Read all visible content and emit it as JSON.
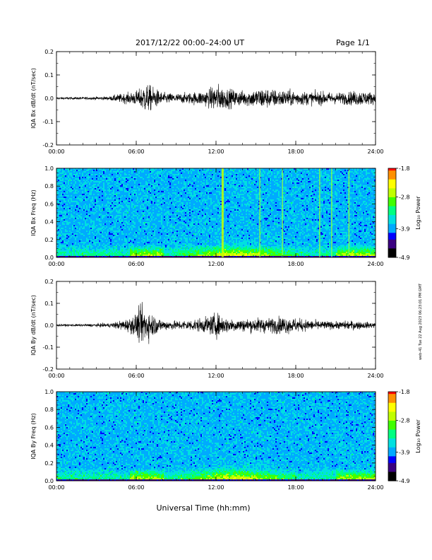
{
  "header": {
    "date_range": "2017/12/22  00:00–24:00 UT",
    "page": "Page 1/1"
  },
  "x_axis_title": "Universal Time (hh:mm)",
  "side_note": "web-41 Tue 22 Aug 2023 06:23:01 PM GMT",
  "colors": {
    "colormap": [
      "#000000",
      "#3a0080",
      "#0000ff",
      "#00aaff",
      "#00e0e0",
      "#00ff80",
      "#40ff00",
      "#c0ff00",
      "#ffff00",
      "#ff9000",
      "#ff0000"
    ],
    "trace": "#000000"
  },
  "chart_data": [
    {
      "type": "line",
      "panel": "bx-dbdt",
      "ylabel": "IQA Bx dB/dt (nT/sec)",
      "x_ticks": [
        "00:00",
        "06:00",
        "12:00",
        "18:00",
        "24:00"
      ],
      "y_ticks": [
        "0.2",
        "0.1",
        "0.0",
        "-0.1",
        "-0.2"
      ],
      "ylim": [
        -0.2,
        0.2
      ],
      "xlim_hours": [
        0,
        24
      ],
      "series": [
        {
          "x_hours": [
            0,
            2,
            4,
            4.5,
            5,
            5.5,
            6,
            6.3,
            6.6,
            7,
            7.5,
            8,
            9,
            10,
            11,
            11.5,
            12,
            12.5,
            13,
            14,
            15,
            15.5,
            16,
            17,
            18,
            19,
            20,
            21,
            22,
            22.5,
            23,
            24
          ],
          "amplitude": [
            0.006,
            0.007,
            0.01,
            0.02,
            0.025,
            0.03,
            0.04,
            0.05,
            0.08,
            0.07,
            0.05,
            0.03,
            0.025,
            0.03,
            0.04,
            0.05,
            0.08,
            0.06,
            0.05,
            0.04,
            0.05,
            0.06,
            0.05,
            0.045,
            0.04,
            0.035,
            0.035,
            0.03,
            0.035,
            0.04,
            0.04,
            0.03
          ]
        }
      ]
    },
    {
      "type": "heatmap",
      "panel": "bx-freq",
      "ylabel": "IQA Bx Freq (Hz)",
      "x_ticks": [
        "00:00",
        "06:00",
        "12:00",
        "18:00",
        "24:00"
      ],
      "y_ticks": [
        "1.0",
        "0.8",
        "0.6",
        "0.4",
        "0.2",
        "0.0"
      ],
      "ylim": [
        0.0,
        1.0
      ],
      "xlim_hours": [
        0,
        24
      ],
      "colorbar": {
        "label": "Log₁₀ Power",
        "ticks": [
          "-1.8",
          "-2.8",
          "-3.9",
          "-4.9"
        ],
        "range": [
          -4.9,
          -1.8
        ]
      },
      "vertical_lines_hours": [
        12.5,
        15.3,
        17.0,
        19.8,
        20.7,
        22.0
      ],
      "low_freq_enhancement_hours": [
        6,
        22.5
      ]
    },
    {
      "type": "line",
      "panel": "by-dbdt",
      "ylabel": "IQA By dB/dt (nT/sec)",
      "x_ticks": [
        "00:00",
        "06:00",
        "12:00",
        "18:00",
        "24:00"
      ],
      "y_ticks": [
        "0.2",
        "0.1",
        "0.0",
        "-0.1",
        "-0.2"
      ],
      "ylim": [
        -0.2,
        0.2
      ],
      "xlim_hours": [
        0,
        24
      ],
      "series": [
        {
          "x_hours": [
            0,
            2,
            4,
            4.5,
            5,
            5.5,
            6,
            6.3,
            6.6,
            7,
            7.5,
            8,
            9,
            10,
            11,
            11.5,
            12,
            12.5,
            13,
            14,
            15,
            15.5,
            16,
            17,
            18,
            19,
            20,
            21,
            22,
            22.5,
            23,
            24
          ],
          "amplitude": [
            0.006,
            0.007,
            0.012,
            0.02,
            0.03,
            0.04,
            0.07,
            0.1,
            0.11,
            0.08,
            0.05,
            0.03,
            0.025,
            0.03,
            0.04,
            0.05,
            0.07,
            0.05,
            0.04,
            0.035,
            0.04,
            0.045,
            0.04,
            0.05,
            0.04,
            0.03,
            0.025,
            0.02,
            0.025,
            0.025,
            0.02,
            0.015
          ]
        }
      ]
    },
    {
      "type": "heatmap",
      "panel": "by-freq",
      "ylabel": "IQA By Freq (Hz)",
      "x_ticks": [
        "00:00",
        "06:00",
        "12:00",
        "18:00",
        "24:00"
      ],
      "y_ticks": [
        "1.0",
        "0.8",
        "0.6",
        "0.4",
        "0.2",
        "0.0"
      ],
      "ylim": [
        0.0,
        1.0
      ],
      "xlim_hours": [
        0,
        24
      ],
      "colorbar": {
        "label": "Log₁₀ Power",
        "ticks": [
          "-1.8",
          "-2.8",
          "-3.9",
          "-4.9"
        ],
        "range": [
          -4.9,
          -1.8
        ]
      },
      "vertical_lines_hours": [],
      "low_freq_enhancement_hours": [
        6,
        22.5
      ]
    }
  ]
}
